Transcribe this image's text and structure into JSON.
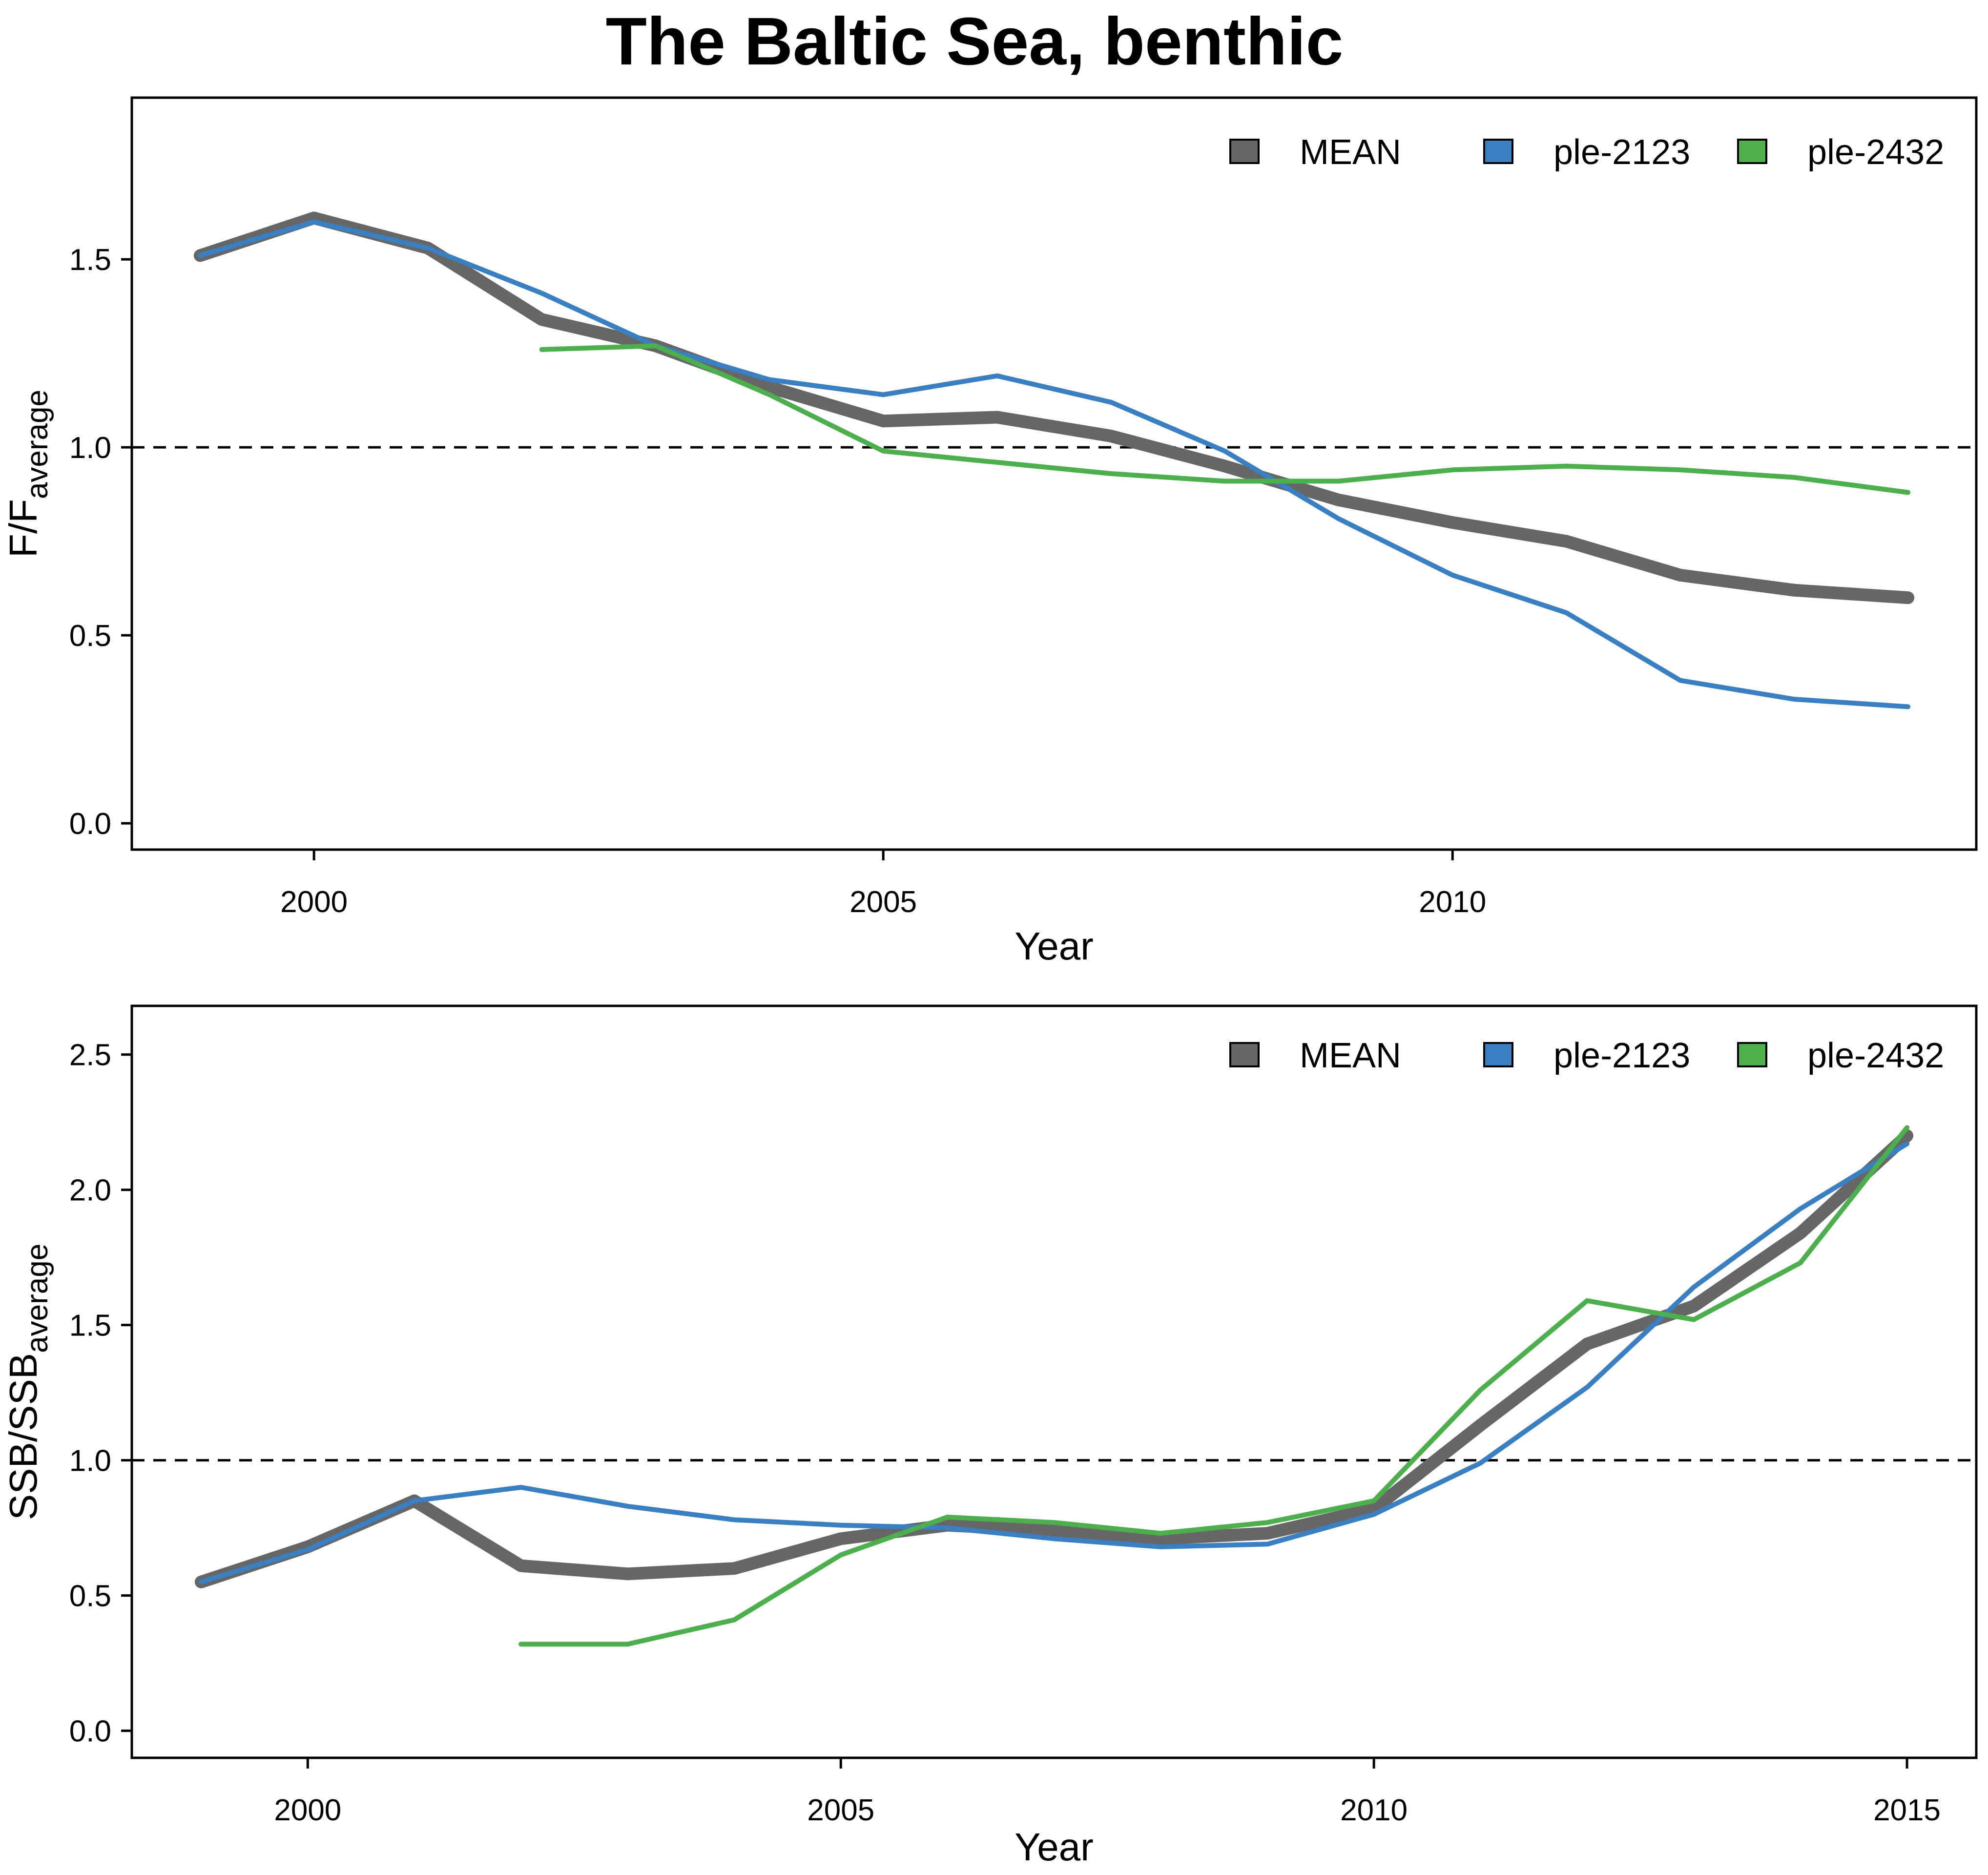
{
  "title": "The Baltic Sea, benthic",
  "colors": {
    "MEAN": "#666666",
    "ple-2123": "#3a7fc1",
    "ple-2432": "#4cae4c"
  },
  "chart_data": [
    {
      "type": "line",
      "title": "",
      "xlabel": "Year",
      "ylabel_main": "F/F",
      "ylabel_sub": "average",
      "xlim": [
        1998.4,
        2014.6
      ],
      "ylim": [
        -0.07,
        1.93
      ],
      "xticks": [
        2000,
        2005,
        2010
      ],
      "yticks": [
        "0.0",
        "0.5",
        "1.0",
        "1.5"
      ],
      "reference_line": 1.0,
      "legend": {
        "position": "top-right",
        "entries": [
          "MEAN",
          "ple-2123",
          "ple-2432"
        ]
      },
      "series": [
        {
          "name": "MEAN",
          "x": [
            1999,
            2000,
            2001,
            2002,
            2003,
            2004,
            2005,
            2006,
            2007,
            2008,
            2009,
            2010,
            2011,
            2012,
            2013,
            2014
          ],
          "y": [
            1.51,
            1.61,
            1.53,
            1.34,
            1.27,
            1.16,
            1.07,
            1.08,
            1.03,
            0.95,
            0.86,
            0.8,
            0.75,
            0.66,
            0.62,
            0.6
          ]
        },
        {
          "name": "ple-2123",
          "x": [
            1999,
            2000,
            2001,
            2002,
            2003,
            2004,
            2005,
            2006,
            2007,
            2008,
            2009,
            2010,
            2011,
            2012,
            2013,
            2014
          ],
          "y": [
            1.51,
            1.6,
            1.53,
            1.41,
            1.27,
            1.18,
            1.14,
            1.19,
            1.12,
            0.99,
            0.81,
            0.66,
            0.56,
            0.38,
            0.33,
            0.31
          ]
        },
        {
          "name": "ple-2432",
          "x": [
            2002,
            2003,
            2004,
            2005,
            2006,
            2007,
            2008,
            2009,
            2010,
            2011,
            2012,
            2013,
            2014
          ],
          "y": [
            1.26,
            1.27,
            1.14,
            0.99,
            0.96,
            0.93,
            0.91,
            0.91,
            0.94,
            0.95,
            0.94,
            0.92,
            0.88
          ]
        }
      ]
    },
    {
      "type": "line",
      "title": "",
      "xlabel": "Year",
      "ylabel_main": "SSB/SSB",
      "ylabel_sub": "average",
      "xlim": [
        1998.35,
        2015.65
      ],
      "ylim": [
        -0.1,
        2.68
      ],
      "xticks": [
        2000,
        2005,
        2010,
        2015
      ],
      "yticks": [
        "0.0",
        "0.5",
        "1.0",
        "1.5",
        "2.0",
        "2.5"
      ],
      "reference_line": 1.0,
      "legend": {
        "position": "top-right",
        "entries": [
          "MEAN",
          "ple-2123",
          "ple-2432"
        ]
      },
      "series": [
        {
          "name": "MEAN",
          "x": [
            1999,
            2000,
            2001,
            2002,
            2003,
            2004,
            2005,
            2006,
            2007,
            2008,
            2009,
            2010,
            2011,
            2012,
            2013,
            2014,
            2015
          ],
          "y": [
            0.55,
            0.68,
            0.85,
            0.61,
            0.58,
            0.6,
            0.71,
            0.76,
            0.74,
            0.71,
            0.73,
            0.82,
            1.13,
            1.43,
            1.57,
            1.84,
            2.2
          ]
        },
        {
          "name": "ple-2123",
          "x": [
            1999,
            2000,
            2001,
            2002,
            2003,
            2004,
            2005,
            2006,
            2007,
            2008,
            2009,
            2010,
            2011,
            2012,
            2013,
            2014,
            2015
          ],
          "y": [
            0.55,
            0.67,
            0.85,
            0.9,
            0.83,
            0.78,
            0.76,
            0.75,
            0.71,
            0.68,
            0.69,
            0.8,
            0.99,
            1.27,
            1.64,
            1.93,
            2.17
          ]
        },
        {
          "name": "ple-2432",
          "x": [
            2002,
            2003,
            2004,
            2005,
            2006,
            2007,
            2008,
            2009,
            2010,
            2011,
            2012,
            2013,
            2014,
            2015
          ],
          "y": [
            0.32,
            0.32,
            0.41,
            0.65,
            0.79,
            0.77,
            0.73,
            0.77,
            0.85,
            1.26,
            1.59,
            1.52,
            1.73,
            2.23
          ]
        }
      ]
    }
  ]
}
